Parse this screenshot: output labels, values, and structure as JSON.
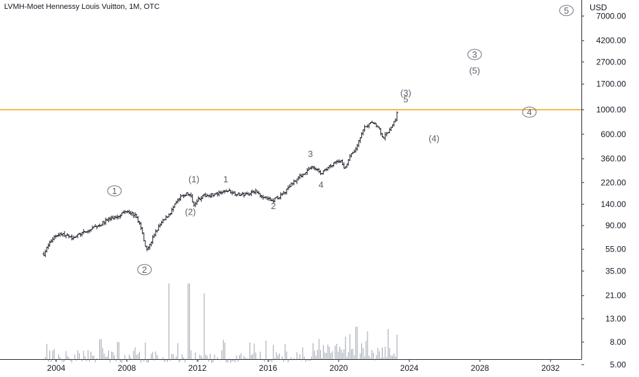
{
  "header": {
    "title": "LVMH-Moet Hennessy Louis Vuitton, 1M, OTC",
    "currency": "USD"
  },
  "colors": {
    "bar": "#131722",
    "volume": "#9aa0ac",
    "level_line": "#f0a21c",
    "wave_label": "#5d606b",
    "axis_border": "#2a2e39"
  },
  "chart_data": {
    "type": "bar",
    "title": "LVMH-Moet Hennessy Louis Vuitton, 1M, OTC",
    "yscale": "log",
    "y_ticks": [
      "7000.00",
      "4200.00",
      "2700.00",
      "1700.00",
      "1000.00",
      "600.00",
      "360.00",
      "220.00",
      "140.00",
      "90.00",
      "55.00",
      "35.00",
      "21.00",
      "13.00",
      "8.00",
      "5.00"
    ],
    "x_ticks": [
      "2004",
      "2008",
      "2012",
      "2016",
      "2020",
      "2024",
      "2028",
      "2032"
    ],
    "horizontal_level": 1000,
    "price_path": [
      [
        2003.3,
        50
      ],
      [
        2003.6,
        62
      ],
      [
        2003.9,
        72
      ],
      [
        2004.2,
        76
      ],
      [
        2004.5,
        74
      ],
      [
        2004.8,
        70
      ],
      [
        2005.1,
        72
      ],
      [
        2005.4,
        76
      ],
      [
        2005.8,
        80
      ],
      [
        2006.1,
        86
      ],
      [
        2006.5,
        92
      ],
      [
        2006.9,
        102
      ],
      [
        2007.3,
        106
      ],
      [
        2007.7,
        115
      ],
      [
        2008.0,
        124
      ],
      [
        2008.2,
        118
      ],
      [
        2008.5,
        110
      ],
      [
        2008.7,
        95
      ],
      [
        2008.9,
        75
      ],
      [
        2009.1,
        55
      ],
      [
        2009.3,
        60
      ],
      [
        2009.6,
        78
      ],
      [
        2009.9,
        92
      ],
      [
        2010.2,
        105
      ],
      [
        2010.5,
        120
      ],
      [
        2010.8,
        145
      ],
      [
        2011.1,
        165
      ],
      [
        2011.4,
        175
      ],
      [
        2011.6,
        168
      ],
      [
        2011.8,
        140
      ],
      [
        2012.0,
        155
      ],
      [
        2012.3,
        165
      ],
      [
        2012.6,
        170
      ],
      [
        2013.0,
        172
      ],
      [
        2013.3,
        176
      ],
      [
        2013.7,
        186
      ],
      [
        2014.0,
        180
      ],
      [
        2014.4,
        170
      ],
      [
        2014.8,
        172
      ],
      [
        2015.2,
        185
      ],
      [
        2015.6,
        170
      ],
      [
        2015.9,
        158
      ],
      [
        2016.2,
        150
      ],
      [
        2016.5,
        160
      ],
      [
        2016.9,
        175
      ],
      [
        2017.2,
        205
      ],
      [
        2017.6,
        235
      ],
      [
        2018.0,
        265
      ],
      [
        2018.4,
        300
      ],
      [
        2018.8,
        290
      ],
      [
        2019.0,
        260
      ],
      [
        2019.4,
        300
      ],
      [
        2019.8,
        340
      ],
      [
        2020.1,
        350
      ],
      [
        2020.3,
        290
      ],
      [
        2020.6,
        370
      ],
      [
        2020.9,
        420
      ],
      [
        2021.2,
        560
      ],
      [
        2021.5,
        700
      ],
      [
        2021.9,
        760
      ],
      [
        2022.2,
        720
      ],
      [
        2022.5,
        560
      ],
      [
        2022.8,
        620
      ],
      [
        2023.0,
        720
      ],
      [
        2023.2,
        800
      ],
      [
        2023.3,
        930
      ]
    ],
    "volume_peaks": [
      [
        2010.4,
        27
      ],
      [
        2011.5,
        27
      ],
      [
        2012.4,
        22
      ],
      [
        2006.5,
        8.5
      ],
      [
        2007.5,
        8
      ],
      [
        2021.0,
        11
      ],
      [
        2022.8,
        10.5
      ]
    ],
    "wave_labels": [
      {
        "text": "1",
        "circled": true,
        "x": 2007.3,
        "y": 185
      },
      {
        "text": "2",
        "circled": true,
        "x": 2009.0,
        "y": 36
      },
      {
        "text": "(1)",
        "circled": false,
        "x": 2011.8,
        "y": 235
      },
      {
        "text": "(2)",
        "circled": false,
        "x": 2011.6,
        "y": 120
      },
      {
        "text": "1",
        "circled": false,
        "x": 2013.6,
        "y": 235
      },
      {
        "text": "2",
        "circled": false,
        "x": 2016.3,
        "y": 135
      },
      {
        "text": "3",
        "circled": false,
        "x": 2018.4,
        "y": 400
      },
      {
        "text": "4",
        "circled": false,
        "x": 2019.0,
        "y": 210
      },
      {
        "text": "(3)",
        "circled": false,
        "x": 2023.8,
        "y": 1420
      },
      {
        "text": "5",
        "circled": false,
        "x": 2023.8,
        "y": 1240
      },
      {
        "text": "(4)",
        "circled": false,
        "x": 2025.4,
        "y": 550
      },
      {
        "text": "3",
        "circled": true,
        "x": 2027.7,
        "y": 3150
      },
      {
        "text": "(5)",
        "circled": false,
        "x": 2027.7,
        "y": 2250
      },
      {
        "text": "4",
        "circled": true,
        "x": 2030.8,
        "y": 950
      },
      {
        "text": "5",
        "circled": true,
        "x": 2032.9,
        "y": 7850
      }
    ]
  }
}
